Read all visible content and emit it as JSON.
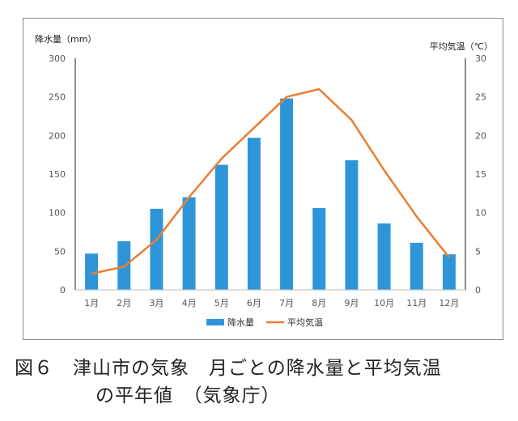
{
  "chart_data": {
    "type": "bar",
    "categories": [
      "1月",
      "2月",
      "3月",
      "4月",
      "5月",
      "6月",
      "7月",
      "8月",
      "9月",
      "10月",
      "11月",
      "12月"
    ],
    "series": [
      {
        "name": "降水量",
        "kind": "bar",
        "axis": "left",
        "color": "#2e96d8",
        "values": [
          47,
          63,
          105,
          120,
          162,
          197,
          248,
          106,
          168,
          86,
          61,
          46
        ]
      },
      {
        "name": "平均気温",
        "kind": "line",
        "axis": "right",
        "color": "#ed7d31",
        "values": [
          2.1,
          3.0,
          6.5,
          12.0,
          17.0,
          21.0,
          25.0,
          26.0,
          22.0,
          15.5,
          9.5,
          4.2
        ]
      }
    ],
    "ylabel_left": "降水量（mm）",
    "ylabel_right": "平均気温（℃）",
    "ylim_left": [
      0,
      300
    ],
    "ylim_right": [
      0,
      30
    ],
    "yticks_left": [
      "0",
      "50",
      "100",
      "150",
      "200",
      "250",
      "300"
    ],
    "yticks_right": [
      "0",
      "5",
      "10",
      "15",
      "20",
      "25",
      "30"
    ],
    "grid": false,
    "legend_position": "bottom-center"
  },
  "caption": {
    "label": "図６",
    "title_line1": "津山市の気象　月ごとの降水量と平均気温",
    "title_line2": "の平年値　（気象庁）"
  }
}
